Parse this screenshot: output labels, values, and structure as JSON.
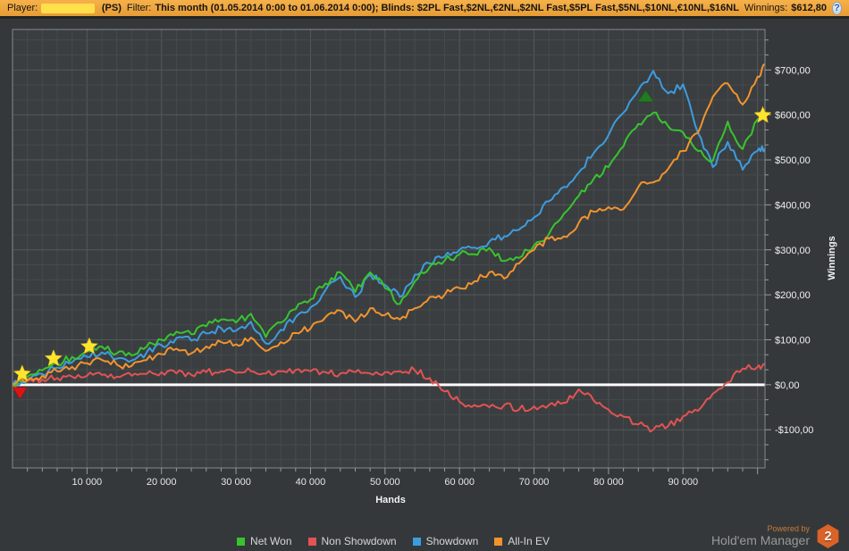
{
  "topbar": {
    "player_label": "Player:",
    "site_tag": "(PS)",
    "filter_label": "Filter:",
    "filter_value": "This month (01.05.2014 0:00 to 01.06.2014 0:00); Blinds: $2PL Fast,$2NL,€2NL,$2NL Fast,$5PL Fast,$5NL,$10NL,€10NL,$16NL",
    "winnings_label": "Winnings:",
    "winnings_value": "$612,80",
    "help_icon": "?"
  },
  "branding": {
    "powered_by": "Powered by",
    "name": "Hold'em Manager",
    "badge": "2"
  },
  "colors": {
    "net_won": "#38c42f",
    "non_showdown": "#e25353",
    "showdown": "#3d9cdf",
    "all_in_ev": "#f2932e",
    "zero_line": "#ffffff",
    "plot_bg": "#3a3e40",
    "page_bg": "#35383a",
    "grid_minor": "#454a4d",
    "grid_major": "#54585b",
    "plot_border": "#85888a",
    "axis_text": "#f0f0f0",
    "star": "#ffe42e",
    "triangle_down": "#dd1414",
    "triangle_up": "#227a22",
    "topbar_bg": "#eda53d"
  },
  "chart_data": {
    "type": "line",
    "title": "",
    "xlabel": "Hands",
    "ylabel": "Winnings",
    "xlim": [
      0,
      101000
    ],
    "ylim": [
      -185,
      790
    ],
    "x_ticks": [
      10000,
      20000,
      30000,
      40000,
      50000,
      60000,
      70000,
      80000,
      90000
    ],
    "x_tick_labels": [
      "10 000",
      "20 000",
      "30 000",
      "40 000",
      "50 000",
      "60 000",
      "70 000",
      "80 000",
      "90 000"
    ],
    "y_ticks": [
      -100,
      0,
      100,
      200,
      300,
      400,
      500,
      600,
      700
    ],
    "y_tick_labels": [
      "-$100,00",
      "$0,00",
      "$100,00",
      "$200,00",
      "$300,00",
      "$400,00",
      "$500,00",
      "$600,00",
      "$700,00"
    ],
    "grid": "on",
    "legend_position": "bottom",
    "zero_line": 0,
    "x": [
      0,
      2000,
      4000,
      6000,
      8000,
      10000,
      12000,
      14000,
      16000,
      18000,
      20000,
      22000,
      24000,
      26000,
      28000,
      30000,
      32000,
      34000,
      36000,
      38000,
      40000,
      42000,
      44000,
      46000,
      48000,
      50000,
      52000,
      54000,
      56000,
      58000,
      60000,
      62000,
      64000,
      66000,
      68000,
      70000,
      72000,
      74000,
      76000,
      78000,
      80000,
      82000,
      84000,
      86000,
      88000,
      90000,
      92000,
      94000,
      96000,
      98000,
      100000,
      101000
    ],
    "series": [
      {
        "name": "Net Won",
        "color": "#38c42f",
        "values": [
          0,
          18,
          32,
          48,
          62,
          75,
          85,
          70,
          65,
          85,
          100,
          118,
          112,
          130,
          145,
          138,
          158,
          106,
          138,
          168,
          190,
          225,
          250,
          206,
          250,
          215,
          180,
          230,
          262,
          276,
          290,
          290,
          304,
          275,
          282,
          310,
          335,
          380,
          420,
          458,
          484,
          530,
          580,
          605,
          575,
          561,
          520,
          498,
          585,
          524,
          590,
          612
        ]
      },
      {
        "name": "Non Showdown",
        "color": "#e25353",
        "values": [
          0,
          8,
          12,
          15,
          18,
          20,
          22,
          18,
          20,
          24,
          28,
          25,
          22,
          28,
          30,
          26,
          30,
          25,
          30,
          33,
          30,
          28,
          25,
          28,
          25,
          28,
          30,
          32,
          15,
          -15,
          -38,
          -45,
          -50,
          -45,
          -55,
          -48,
          -45,
          -40,
          -10,
          -35,
          -55,
          -71,
          -88,
          -100,
          -92,
          -70,
          -58,
          -20,
          5,
          36,
          40,
          46
        ]
      },
      {
        "name": "Showdown",
        "color": "#3d9cdf",
        "values": [
          0,
          12,
          24,
          38,
          50,
          62,
          72,
          58,
          54,
          72,
          88,
          104,
          98,
          114,
          126,
          120,
          140,
          92,
          122,
          150,
          172,
          210,
          240,
          195,
          245,
          222,
          195,
          245,
          270,
          285,
          300,
          305,
          318,
          330,
          345,
          372,
          408,
          440,
          472,
          515,
          555,
          605,
          655,
          698,
          648,
          668,
          560,
          484,
          540,
          478,
          520,
          525
        ]
      },
      {
        "name": "All-In EV",
        "color": "#f2932e",
        "values": [
          0,
          10,
          20,
          30,
          40,
          48,
          55,
          45,
          42,
          55,
          68,
          80,
          70,
          85,
          95,
          90,
          105,
          75,
          95,
          115,
          125,
          150,
          165,
          140,
          170,
          155,
          145,
          170,
          195,
          200,
          215,
          230,
          250,
          236,
          270,
          300,
          325,
          330,
          360,
          385,
          395,
          390,
          440,
          450,
          480,
          520,
          560,
          640,
          670,
          623,
          685,
          712
        ]
      }
    ],
    "markers": {
      "stars": [
        {
          "hands": 1300,
          "value": 24
        },
        {
          "hands": 5500,
          "value": 58
        },
        {
          "hands": 10300,
          "value": 85
        },
        {
          "hands": 100700,
          "value": 599
        }
      ],
      "triangles_down": [
        {
          "hands": 1000,
          "value": -18
        }
      ],
      "triangles_up": [
        {
          "hands": 85000,
          "value": 641
        }
      ]
    }
  },
  "legend": [
    {
      "label": "Net Won",
      "color": "#38c42f"
    },
    {
      "label": "Non Showdown",
      "color": "#e25353"
    },
    {
      "label": "Showdown",
      "color": "#3d9cdf"
    },
    {
      "label": "All-In EV",
      "color": "#f2932e"
    }
  ]
}
